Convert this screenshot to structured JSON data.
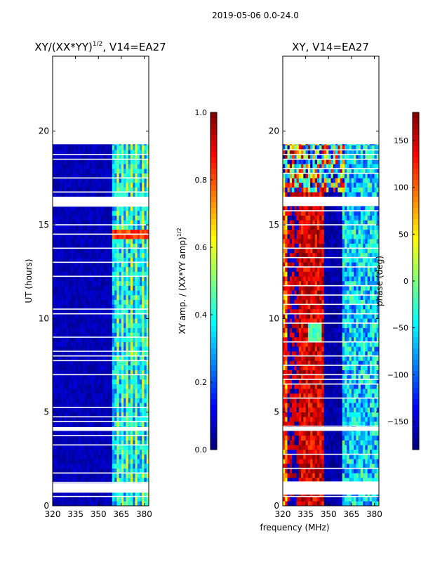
{
  "figure": {
    "suptitle": "2019-05-06 0.0-24.0",
    "xlabel": "frequency (MHz)"
  },
  "colors": {
    "axes": "#000000",
    "background": "#ffffff",
    "masked_row": "#ffffff",
    "jet": [
      "#00007f",
      "#0000ff",
      "#007fff",
      "#00ffff",
      "#7fff7f",
      "#ffff00",
      "#ff7f00",
      "#ff0000",
      "#7f0000"
    ]
  },
  "chart_data": [
    {
      "type": "heatmap",
      "title_base": "XY/(XX*YY)",
      "title_sup": "1/2",
      "title_tail": ", V14=EA27",
      "title": "XY/(XX*YY)^1/2, V14=EA27",
      "ylabel": "UT (hours)",
      "x_ticks": [
        320,
        335,
        350,
        365,
        380
      ],
      "x_tick_labels": [
        "320",
        "335",
        "350",
        "365",
        "380"
      ],
      "xlim": [
        320,
        383
      ],
      "y_ticks": [
        0,
        5,
        10,
        15,
        20
      ],
      "y_tick_labels": [
        "0",
        "5",
        "10",
        "15",
        "20"
      ],
      "ylim": [
        0,
        24
      ],
      "data_time_range": [
        0.0,
        19.3
      ],
      "masked_time_intervals": [
        [
          0.7,
          1.2
        ],
        [
          4.0,
          4.2
        ],
        [
          16.0,
          16.5
        ]
      ],
      "colorbar": {
        "label_base": "XY amp. / (XX*YY amp)",
        "label_sup": "1/2",
        "label": "XY amp. / (XX*YY amp)^1/2",
        "range": [
          0.0,
          1.0
        ],
        "ticks": [
          0.0,
          0.2,
          0.4,
          0.6,
          0.8,
          1.0
        ],
        "tick_labels": [
          "0.0",
          "0.2",
          "0.4",
          "0.6",
          "0.8",
          "1.0"
        ]
      },
      "features": [
        {
          "freq_range": [
            320,
            359
          ],
          "value": 0.05,
          "description": "low amplitude background"
        },
        {
          "freq_range": [
            360,
            382
          ],
          "value": 0.45,
          "description": "band of elevated amplitude with vertical streaks"
        },
        {
          "time": 14.4,
          "freq_range": [
            360,
            381
          ],
          "value": 0.75,
          "description": "bright row"
        }
      ]
    },
    {
      "type": "heatmap",
      "title": "XY, V14=EA27",
      "x_ticks": [
        320,
        335,
        350,
        365,
        380
      ],
      "x_tick_labels": [
        "320",
        "335",
        "350",
        "365",
        "380"
      ],
      "xlim": [
        320,
        383
      ],
      "y_ticks": [
        0,
        5,
        10,
        15,
        20
      ],
      "y_tick_labels": [
        "0",
        "5",
        "10",
        "15",
        "20"
      ],
      "ylim": [
        0,
        24
      ],
      "data_time_range": [
        0.0,
        19.3
      ],
      "masked_time_intervals": [
        [
          0.6,
          1.3
        ],
        [
          4.0,
          4.2
        ],
        [
          16.0,
          16.5
        ]
      ],
      "colorbar": {
        "label": "phase (deg)",
        "range": [
          -180,
          180
        ],
        "ticks": [
          -150,
          -100,
          -50,
          0,
          50,
          100,
          150
        ],
        "tick_labels": [
          "−150",
          "−100",
          "−50",
          "0",
          "50",
          "100",
          "150"
        ]
      },
      "features": [
        {
          "freq_range": [
            320,
            322
          ],
          "value": 120,
          "description": "phase gradient at left edge"
        },
        {
          "freq_range": [
            330,
            345
          ],
          "value": 170,
          "description": "high phase region, red/orange"
        },
        {
          "freq_range": [
            346,
            358
          ],
          "value": -170,
          "description": "low phase region, dark blue"
        },
        {
          "freq_range": [
            359,
            382
          ],
          "value": -60,
          "description": "mixed blue/cyan band"
        }
      ]
    }
  ]
}
